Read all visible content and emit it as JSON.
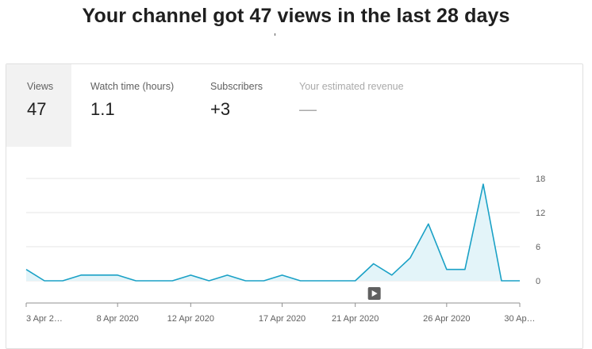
{
  "headline": "Your channel got 47 views in the last 28 days",
  "metrics": [
    {
      "label": "Views",
      "value": "47"
    },
    {
      "label": "Watch time (hours)",
      "value": "1.1"
    },
    {
      "label": "Subscribers",
      "value": "+3"
    },
    {
      "label": "Your estimated revenue",
      "value": "—"
    }
  ],
  "colors": {
    "line": "#1aa1c6",
    "fill": "#e3f4f9",
    "grid": "#e5e5e5",
    "axis": "#909090",
    "marker": "#606060"
  },
  "icons": {
    "marker": "play-icon"
  },
  "chart_data": {
    "type": "area",
    "x": [
      "3 Apr 2020",
      "4 Apr 2020",
      "5 Apr 2020",
      "6 Apr 2020",
      "7 Apr 2020",
      "8 Apr 2020",
      "9 Apr 2020",
      "10 Apr 2020",
      "11 Apr 2020",
      "12 Apr 2020",
      "13 Apr 2020",
      "14 Apr 2020",
      "15 Apr 2020",
      "16 Apr 2020",
      "17 Apr 2020",
      "18 Apr 2020",
      "19 Apr 2020",
      "20 Apr 2020",
      "21 Apr 2020",
      "22 Apr 2020",
      "23 Apr 2020",
      "24 Apr 2020",
      "25 Apr 2020",
      "26 Apr 2020",
      "27 Apr 2020",
      "28 Apr 2020",
      "29 Apr 2020",
      "30 Apr 2020"
    ],
    "x_tick_labels": [
      "3 Apr 2…",
      "8 Apr 2020",
      "12 Apr 2020",
      "17 Apr 2020",
      "21 Apr 2020",
      "26 Apr 2020",
      "30 Ap…"
    ],
    "x_tick_index": [
      0,
      5,
      9,
      14,
      18,
      23,
      27
    ],
    "series": [
      {
        "values": [
          2,
          0,
          0,
          1,
          1,
          1,
          0,
          0,
          0,
          1,
          0,
          1,
          0,
          0,
          1,
          0,
          0,
          0,
          0,
          3,
          1,
          4,
          10,
          2,
          2,
          17,
          0,
          0
        ]
      }
    ],
    "yticks": [
      0,
      6,
      12,
      18
    ],
    "ylim": [
      0,
      18
    ],
    "grid": true,
    "marker_at": "21 Apr 2020"
  }
}
